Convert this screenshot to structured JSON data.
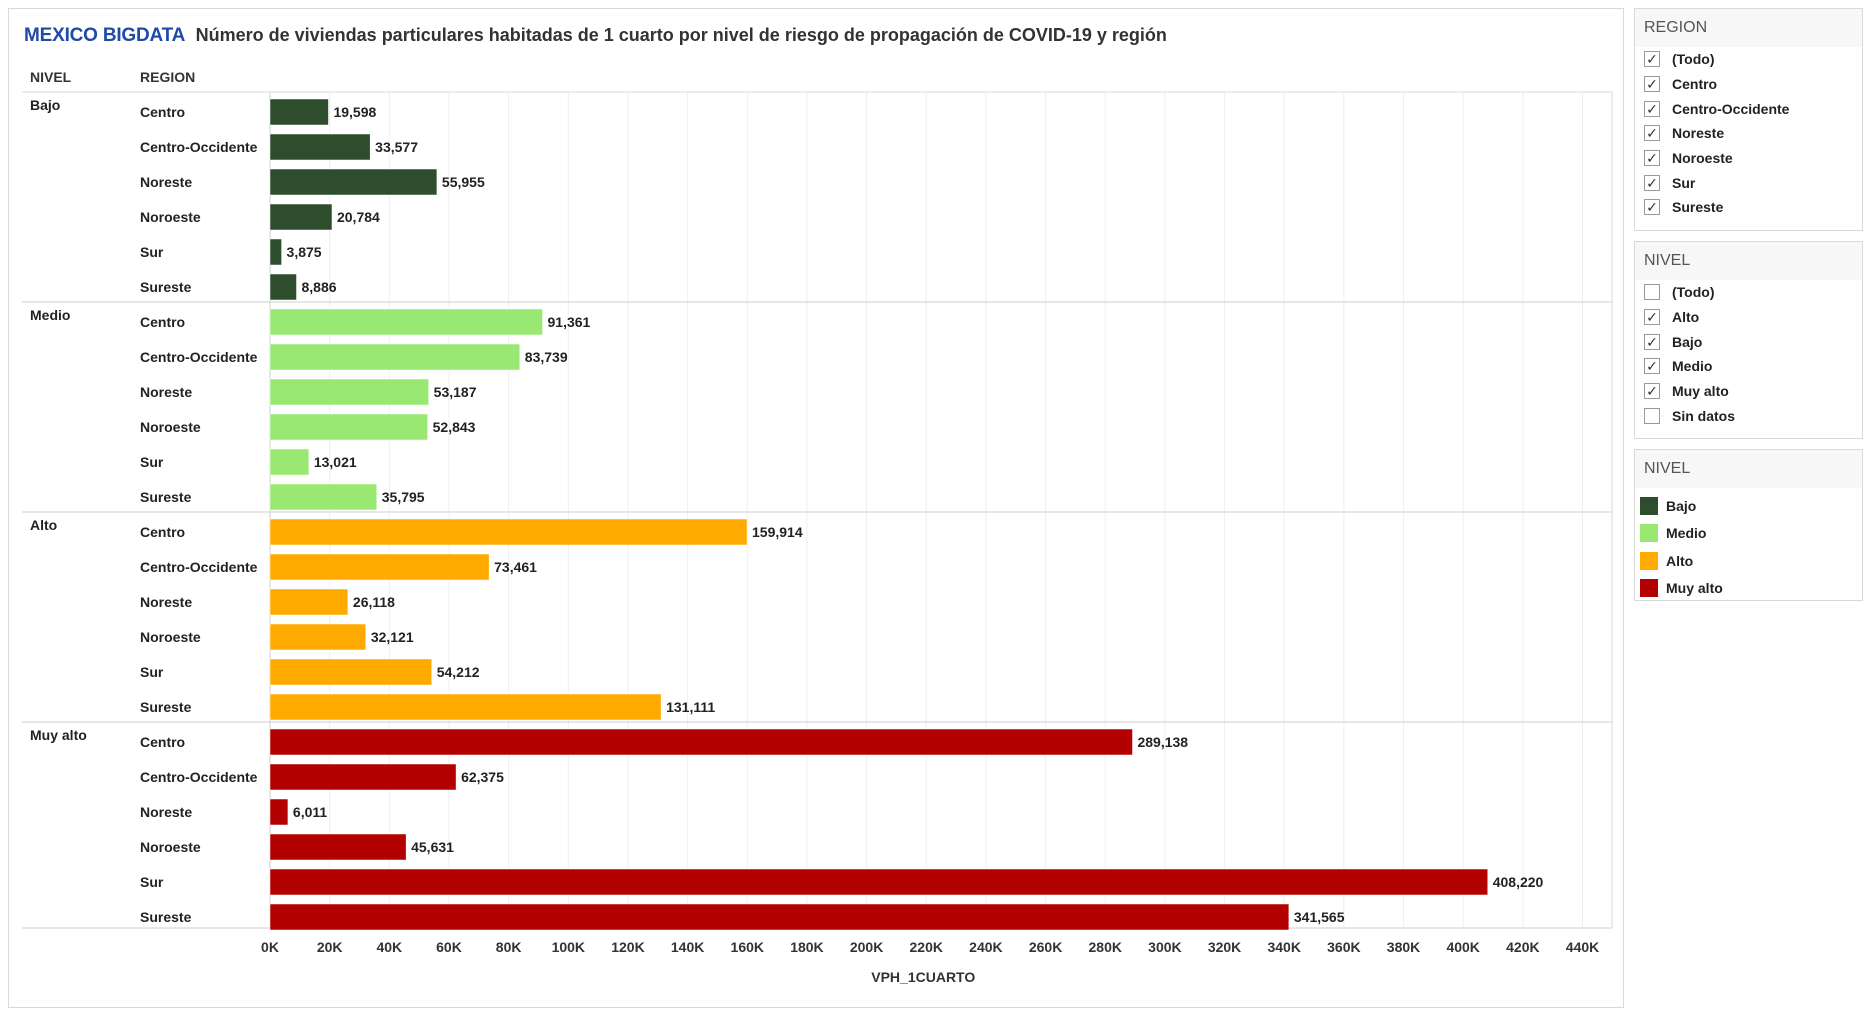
{
  "header": {
    "brand": "MEXICO BIGDATA",
    "title": "Número de viviendas particulares habitadas de 1 cuarto por nivel de riesgo de propagación de COVID-19 y región"
  },
  "columns": {
    "nivel": "NIVEL",
    "region": "REGION"
  },
  "chart_data": {
    "type": "bar",
    "orientation": "horizontal",
    "title": "Número de viviendas particulares habitadas de 1 cuarto por nivel de riesgo de propagación de COVID-19 y región",
    "xlabel": "VPH_1CUARTO",
    "ylabel": "",
    "xlim": [
      0,
      440000
    ],
    "x_ticks": [
      "0K",
      "20K",
      "40K",
      "60K",
      "80K",
      "100K",
      "120K",
      "140K",
      "160K",
      "180K",
      "200K",
      "220K",
      "240K",
      "260K",
      "280K",
      "300K",
      "320K",
      "340K",
      "360K",
      "380K",
      "400K",
      "420K",
      "440K"
    ],
    "grid": true,
    "groups": [
      {
        "nivel": "Bajo",
        "color": "#2d4d2d",
        "bars": [
          {
            "region": "Centro",
            "value": 19598,
            "label": "19,598"
          },
          {
            "region": "Centro-Occidente",
            "value": 33577,
            "label": "33,577"
          },
          {
            "region": "Noreste",
            "value": 55955,
            "label": "55,955"
          },
          {
            "region": "Noroeste",
            "value": 20784,
            "label": "20,784"
          },
          {
            "region": "Sur",
            "value": 3875,
            "label": "3,875"
          },
          {
            "region": "Sureste",
            "value": 8886,
            "label": "8,886"
          }
        ]
      },
      {
        "nivel": "Medio",
        "color": "#99e872",
        "bars": [
          {
            "region": "Centro",
            "value": 91361,
            "label": "91,361"
          },
          {
            "region": "Centro-Occidente",
            "value": 83739,
            "label": "83,739"
          },
          {
            "region": "Noreste",
            "value": 53187,
            "label": "53,187"
          },
          {
            "region": "Noroeste",
            "value": 52843,
            "label": "52,843"
          },
          {
            "region": "Sur",
            "value": 13021,
            "label": "13,021"
          },
          {
            "region": "Sureste",
            "value": 35795,
            "label": "35,795"
          }
        ]
      },
      {
        "nivel": "Alto",
        "color": "#ffaa00",
        "bars": [
          {
            "region": "Centro",
            "value": 159914,
            "label": "159,914"
          },
          {
            "region": "Centro-Occidente",
            "value": 73461,
            "label": "73,461"
          },
          {
            "region": "Noreste",
            "value": 26118,
            "label": "26,118"
          },
          {
            "region": "Noroeste",
            "value": 32121,
            "label": "32,121"
          },
          {
            "region": "Sur",
            "value": 54212,
            "label": "54,212"
          },
          {
            "region": "Sureste",
            "value": 131111,
            "label": "131,111"
          }
        ]
      },
      {
        "nivel": "Muy alto",
        "color": "#b30000",
        "bars": [
          {
            "region": "Centro",
            "value": 289138,
            "label": "289,138"
          },
          {
            "region": "Centro-Occidente",
            "value": 62375,
            "label": "62,375"
          },
          {
            "region": "Noreste",
            "value": 6011,
            "label": "6,011"
          },
          {
            "region": "Noroeste",
            "value": 45631,
            "label": "45,631"
          },
          {
            "region": "Sur",
            "value": 408220,
            "label": "408,220"
          },
          {
            "region": "Sureste",
            "value": 341565,
            "label": "341,565"
          }
        ]
      }
    ]
  },
  "filters": {
    "region": {
      "title": "REGION",
      "items": [
        {
          "label": "(Todo)",
          "checked": true
        },
        {
          "label": "Centro",
          "checked": true
        },
        {
          "label": "Centro-Occidente",
          "checked": true
        },
        {
          "label": "Noreste",
          "checked": true
        },
        {
          "label": "Noroeste",
          "checked": true
        },
        {
          "label": "Sur",
          "checked": true
        },
        {
          "label": "Sureste",
          "checked": true
        }
      ]
    },
    "nivel": {
      "title": "NIVEL",
      "items": [
        {
          "label": "(Todo)",
          "checked": false
        },
        {
          "label": "Alto",
          "checked": true
        },
        {
          "label": "Bajo",
          "checked": true
        },
        {
          "label": "Medio",
          "checked": true
        },
        {
          "label": "Muy alto",
          "checked": true
        },
        {
          "label": "Sin datos",
          "checked": false
        }
      ]
    }
  },
  "legend": {
    "title": "NIVEL",
    "items": [
      {
        "label": "Bajo",
        "color": "#2d4d2d"
      },
      {
        "label": "Medio",
        "color": "#99e872"
      },
      {
        "label": "Alto",
        "color": "#ffaa00"
      },
      {
        "label": "Muy alto",
        "color": "#b30000"
      }
    ]
  }
}
